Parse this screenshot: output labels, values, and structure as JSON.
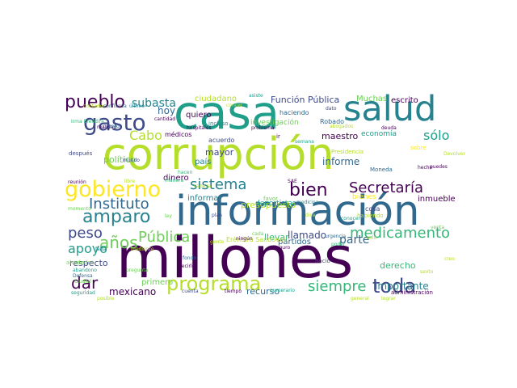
{
  "colors": {
    "dark_purple": "#440154",
    "indigo": "#3e4a89",
    "blue": "#31688e",
    "teal": "#26828e",
    "green_teal": "#1f9e89",
    "green": "#35b779",
    "lime": "#6ece58",
    "yellow_green": "#b5de2b",
    "yellow": "#fde725"
  },
  "words": [
    {
      "text": "corrupción",
      "color": "#b5de2b"
    },
    {
      "text": "millones",
      "color": "#440154"
    },
    {
      "text": "casa",
      "color": "#1f9e89"
    },
    {
      "text": "información",
      "color": "#31688e"
    },
    {
      "text": "salud",
      "color": "#26828e"
    },
    {
      "text": "gobierno",
      "color": "#fde725"
    },
    {
      "text": "programa",
      "color": "#b5de2b"
    },
    {
      "text": "amparo",
      "color": "#26828e"
    },
    {
      "text": "gasto",
      "color": "#3e4a89"
    },
    {
      "text": "pueblo",
      "color": "#440154"
    },
    {
      "text": "Instituto",
      "color": "#31688e"
    },
    {
      "text": "bien",
      "color": "#440154"
    },
    {
      "text": "sistema",
      "color": "#26828e"
    },
    {
      "text": "Secretaría",
      "color": "#440154"
    },
    {
      "text": "medicamento",
      "color": "#35b779"
    },
    {
      "text": "toda",
      "color": "#3e4a89"
    },
    {
      "text": "siempre",
      "color": "#35b779"
    },
    {
      "text": "años",
      "color": "#6ece58"
    },
    {
      "text": "dar",
      "color": "#440154"
    },
    {
      "text": "peso",
      "color": "#3e4a89"
    },
    {
      "text": "Pública",
      "color": "#6ece58"
    },
    {
      "text": "apoyo",
      "color": "#1f9e89"
    },
    {
      "text": "subasta",
      "color": "#26828e"
    },
    {
      "text": "sólo",
      "color": "#1f9e89"
    },
    {
      "text": "Cabo",
      "color": "#b5de2b"
    },
    {
      "text": "político",
      "color": "#6ece58"
    },
    {
      "text": "hoy",
      "color": "#31688e"
    },
    {
      "text": "ciudadano",
      "color": "#b5de2b"
    },
    {
      "text": "Función Pública",
      "color": "#3e4a89"
    },
    {
      "text": "Muchas",
      "color": "#6ece58"
    },
    {
      "text": "escrito",
      "color": "#440154"
    },
    {
      "text": "importante",
      "color": "#26828e"
    },
    {
      "text": "mexicano",
      "color": "#440154"
    },
    {
      "text": "respecto",
      "color": "#3e4a89"
    },
    {
      "text": "derecho",
      "color": "#35b779"
    },
    {
      "text": "llamado",
      "color": "#3e4a89"
    },
    {
      "text": "parte",
      "color": "#31688e"
    },
    {
      "text": "informe",
      "color": "#31688e"
    },
    {
      "text": "inmueble",
      "color": "#440154"
    },
    {
      "text": "recurso",
      "color": "#31688e"
    },
    {
      "text": "primero",
      "color": "#6ece58"
    },
    {
      "text": "maestro",
      "color": "#440154"
    },
    {
      "text": "mayor",
      "color": "#3e4a89"
    },
    {
      "text": "país",
      "color": "#26828e"
    },
    {
      "text": "dinero",
      "color": "#440154"
    },
    {
      "text": "informar",
      "color": "#26828e"
    },
    {
      "text": "quiero",
      "color": "#440154"
    },
    {
      "text": "presupuesto",
      "color": "#b5de2b"
    },
    {
      "text": "llevar",
      "color": "#35b779"
    },
    {
      "text": "partidos",
      "color": "#31688e"
    },
    {
      "text": "deportistas",
      "color": "#1f9e89"
    },
    {
      "text": "investigación",
      "color": "#6ece58"
    },
    {
      "text": "economía",
      "color": "#1f9e89"
    },
    {
      "text": "bienes",
      "color": "#fde725"
    },
    {
      "text": "Erèndira Sandoval",
      "color": "#b5de2b"
    },
    {
      "text": "alrededor",
      "color": "#6ece58"
    },
    {
      "text": "haciendo",
      "color": "#31688e"
    },
    {
      "text": "Robado",
      "color": "#31688e"
    },
    {
      "text": "cosa",
      "color": "#3e4a89"
    },
    {
      "text": "habiendo",
      "color": "#b5de2b"
    },
    {
      "text": "acuerdo",
      "color": "#3e4a89"
    },
    {
      "text": "médicos",
      "color": "#440154"
    },
    {
      "text": "después",
      "color": "#3e4a89"
    },
    {
      "text": "incluso",
      "color": "#26828e"
    },
    {
      "text": "Presidencia",
      "color": "#b5de2b"
    },
    {
      "text": "Moneda",
      "color": "#31688e"
    },
    {
      "text": "favor",
      "color": "#6ece58"
    },
    {
      "text": "nació",
      "color": "#3e4a89"
    },
    {
      "text": "administración",
      "color": "#440154"
    },
    {
      "text": "seguridad",
      "color": "#1f9e89"
    },
    {
      "text": "abandono",
      "color": "#1f9e89"
    },
    {
      "text": "Defensa",
      "color": "#31688e"
    },
    {
      "text": "Ciudad",
      "color": "#6ece58"
    },
    {
      "text": "falta",
      "color": "#26828e"
    },
    {
      "text": "decirle",
      "color": "#440154"
    },
    {
      "text": "fondo",
      "color": "#31688e"
    },
    {
      "text": "gente",
      "color": "#b5de2b"
    },
    {
      "text": "cuenta",
      "color": "#3e4a89"
    },
    {
      "text": "tiempo",
      "color": "#440154"
    },
    {
      "text": "ningún",
      "color": "#440154"
    },
    {
      "text": "cada",
      "color": "#6ece58"
    },
    {
      "text": "hacen",
      "color": "#35b779"
    },
    {
      "text": "Seguro",
      "color": "#440154"
    },
    {
      "text": "medicina",
      "color": "#26828e"
    },
    {
      "text": "venta",
      "color": "#6ece58"
    },
    {
      "text": "hecho",
      "color": "#440154"
    },
    {
      "text": "general",
      "color": "#b5de2b"
    },
    {
      "text": "conocer",
      "color": "#1f9e89"
    },
    {
      "text": "abogados",
      "color": "#b5de2b"
    },
    {
      "text": "deuda",
      "color": "#440154"
    },
    {
      "text": "dato",
      "color": "#3e4a89"
    },
    {
      "text": "problema",
      "color": "#440154"
    },
    {
      "text": "semana",
      "color": "#1f9e89"
    },
    {
      "text": "asiste",
      "color": "#1f9e89"
    },
    {
      "text": "concer",
      "color": "#b5de2b"
    },
    {
      "text": "contador",
      "color": "#b5de2b"
    },
    {
      "text": "confianza",
      "color": "#31688e"
    },
    {
      "text": "último",
      "color": "#26828e"
    },
    {
      "text": "realidad",
      "color": "#440154"
    },
    {
      "text": "cuento",
      "color": "#31688e"
    },
    {
      "text": "cantidad",
      "color": "#440154"
    },
    {
      "text": "hospitales",
      "color": "#440154"
    },
    {
      "text": "reunión",
      "color": "#440154"
    },
    {
      "text": "momento",
      "color": "#6ece58"
    },
    {
      "text": "mundo",
      "color": "#3e4a89"
    },
    {
      "text": "manera",
      "color": "#35b779"
    },
    {
      "text": "plan",
      "color": "#3e4a89"
    },
    {
      "text": "ley",
      "color": "#6ece58"
    },
    {
      "text": "libre",
      "color": "#b5de2b"
    },
    {
      "text": "puedes",
      "color": "#440154"
    },
    {
      "text": "Devolver",
      "color": "#b5de2b"
    },
    {
      "text": "Irma Eréndira",
      "color": "#35b779"
    },
    {
      "text": "SAE",
      "color": "#440154"
    },
    {
      "text": "numerario",
      "color": "#1f9e89"
    },
    {
      "text": "pregunta",
      "color": "#6ece58"
    },
    {
      "text": "mediante",
      "color": "#b5de2b"
    },
    {
      "text": "urgencia",
      "color": "#31688e"
    },
    {
      "text": "poder",
      "color": "#35b779"
    },
    {
      "text": "solo",
      "color": "#b5de2b"
    },
    {
      "text": "sexto",
      "color": "#b5de2b"
    },
    {
      "text": "lograr",
      "color": "#b5de2b"
    },
    {
      "text": "sobre",
      "color": "#fde725"
    },
    {
      "text": "creo",
      "color": "#b5de2b"
    },
    {
      "text": "dice",
      "color": "#b5de2b"
    },
    {
      "text": "cabeza",
      "color": "#b5de2b"
    },
    {
      "text": "posible",
      "color": "#b5de2b"
    },
    {
      "text": "ir",
      "color": "#440154"
    }
  ]
}
